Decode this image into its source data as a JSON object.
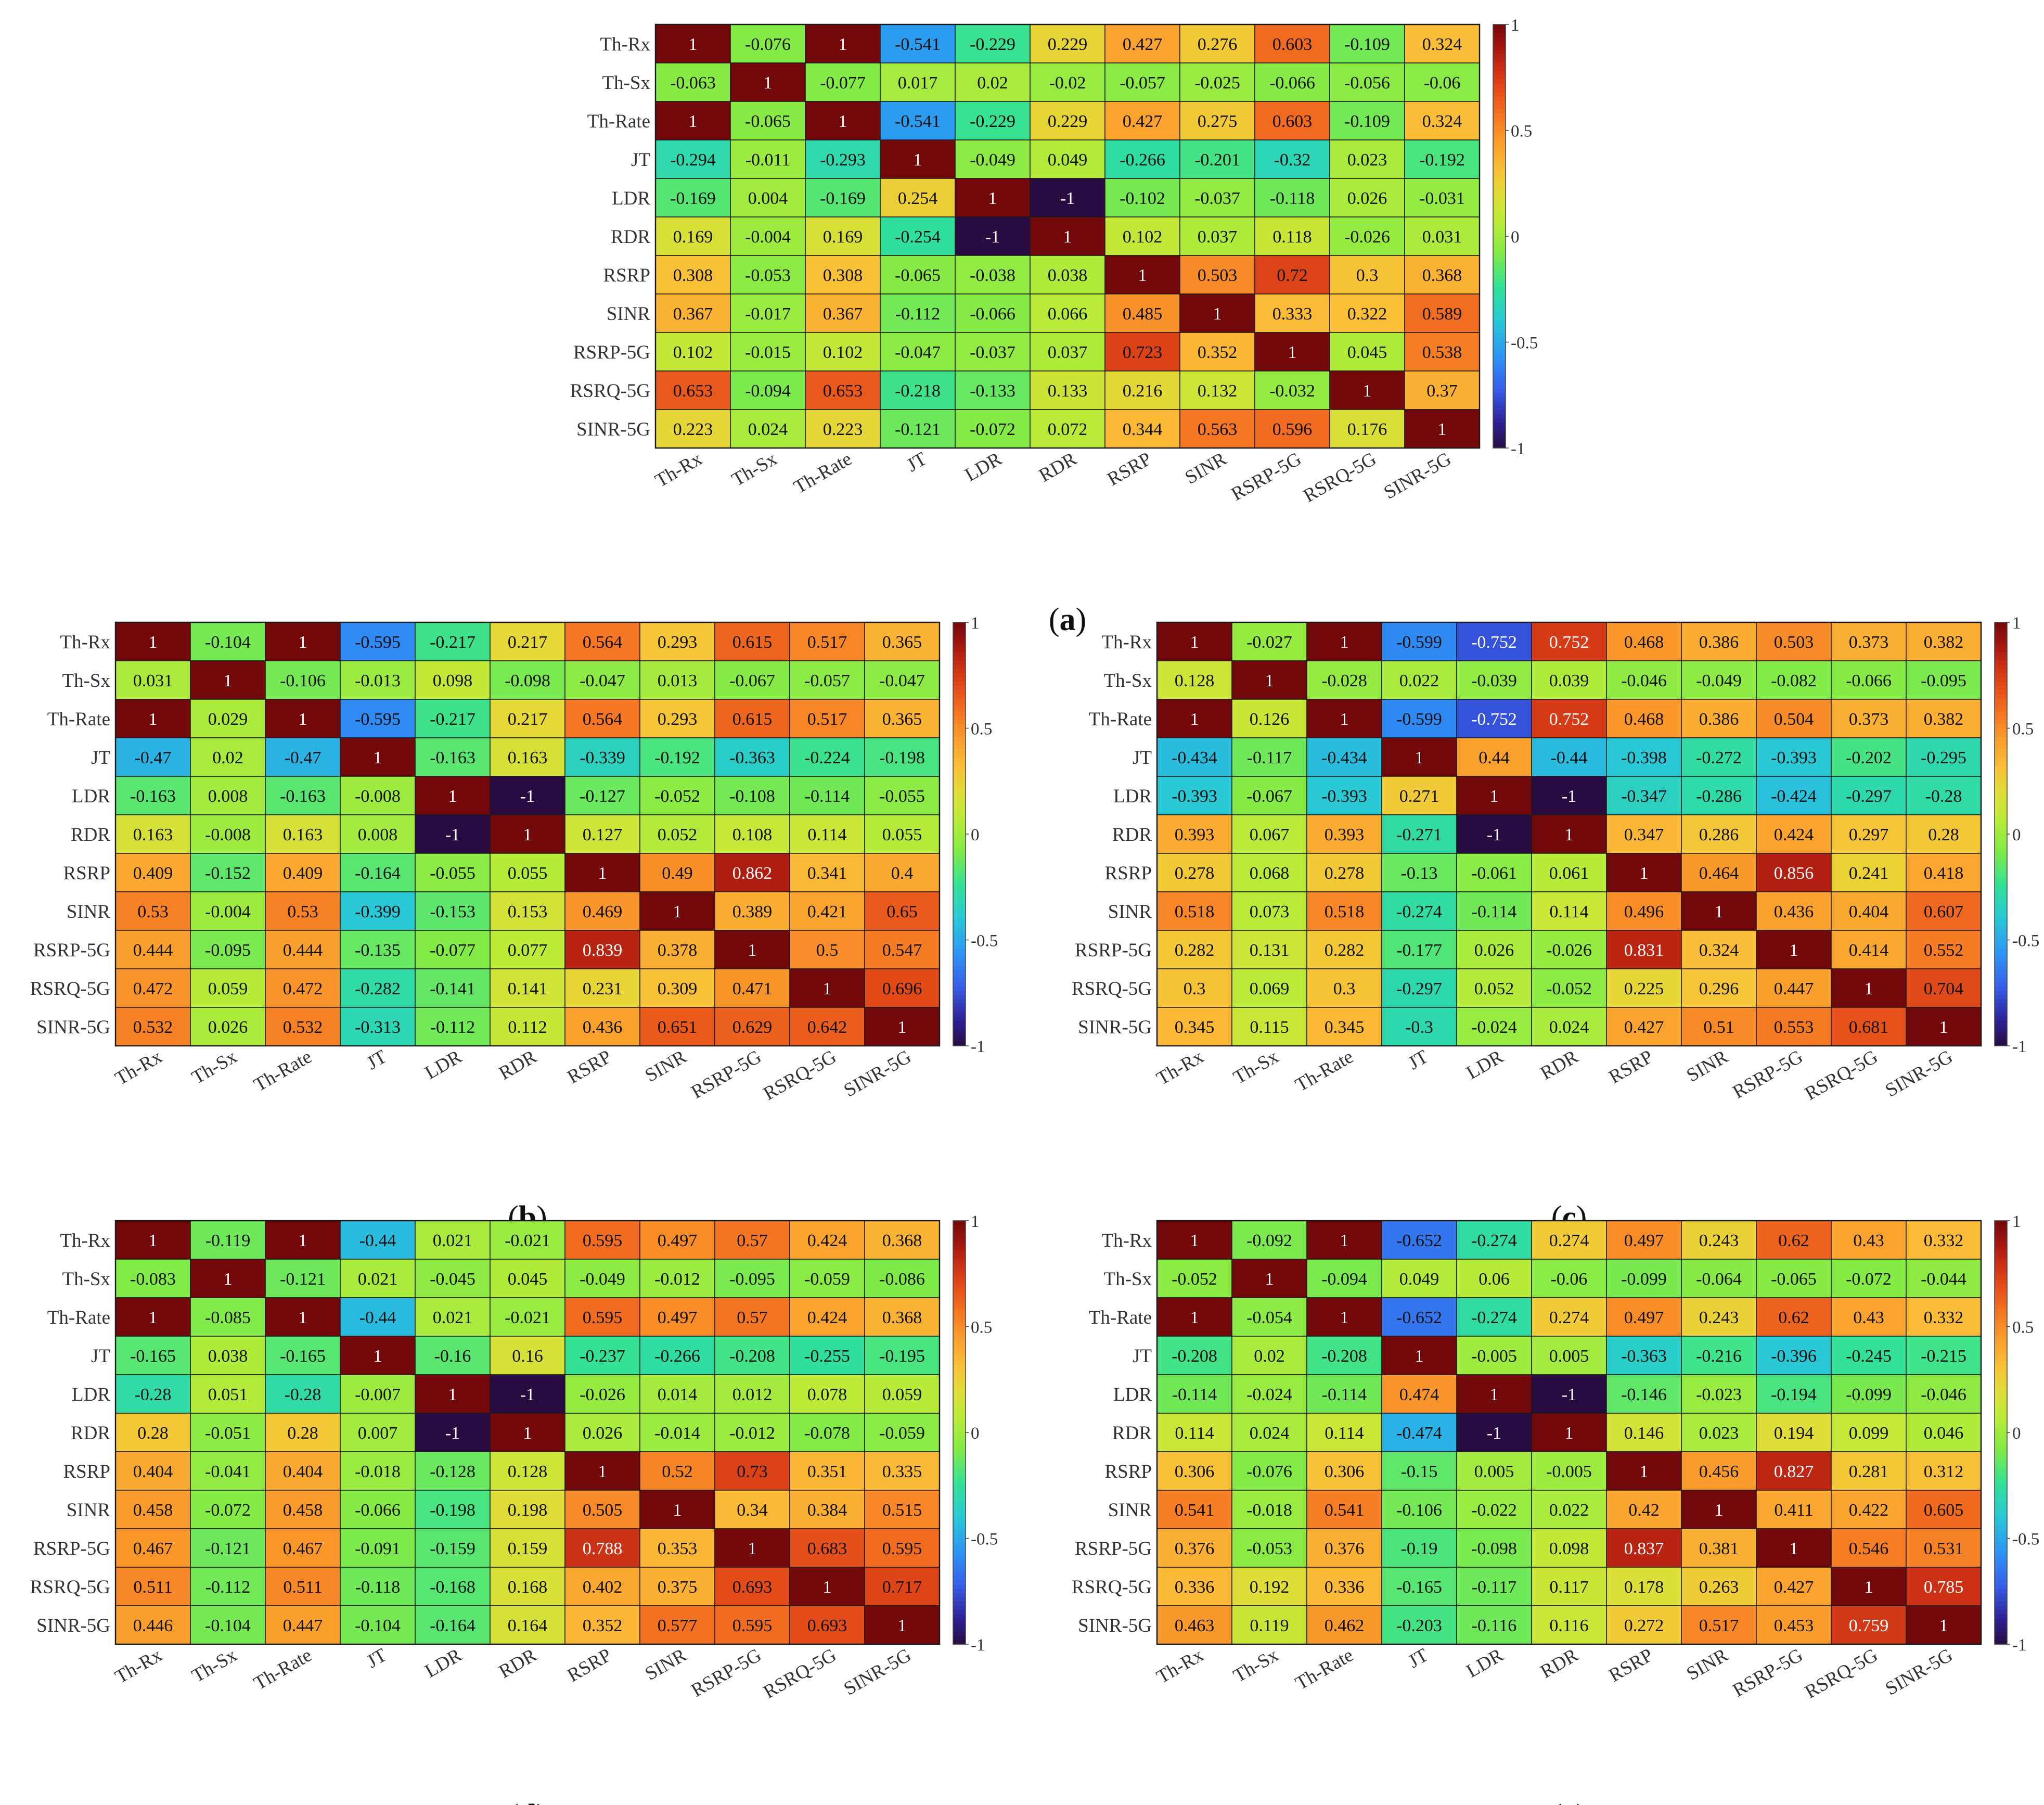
{
  "figure": {
    "variables": [
      "Th-Rx",
      "Th-Sx",
      "Th-Rate",
      "JT",
      "LDR",
      "RDR",
      "RSRP",
      "SINR",
      "RSRP-5G",
      "RSRQ-5G",
      "SINR-5G"
    ],
    "colorbar": {
      "ticks": [
        "1",
        "0.5",
        "0",
        "-0.5",
        "-1"
      ],
      "colormap": "jet-like"
    }
  },
  "chart_data": [
    {
      "type": "heatmap",
      "panel_label": "(a)",
      "rows": [
        "Th-Rx",
        "Th-Sx",
        "Th-Rate",
        "JT",
        "LDR",
        "RDR",
        "RSRP",
        "SINR",
        "RSRP-5G",
        "RSRQ-5G",
        "SINR-5G"
      ],
      "cols": [
        "Th-Rx",
        "Th-Sx",
        "Th-Rate",
        "JT",
        "LDR",
        "RDR",
        "RSRP",
        "SINR",
        "RSRP-5G",
        "RSRQ-5G",
        "SINR-5G"
      ],
      "zlim": [
        -1,
        1
      ],
      "values": [
        [
          "1",
          "-0.076",
          "1",
          "-0.541",
          "-0.229",
          "0.229",
          "0.427",
          "0.276",
          "0.603",
          "-0.109",
          "0.324"
        ],
        [
          "-0.063",
          "1",
          "-0.077",
          "0.017",
          "0.02",
          "-0.02",
          "-0.057",
          "-0.025",
          "-0.066",
          "-0.056",
          "-0.06"
        ],
        [
          "1",
          "-0.065",
          "1",
          "-0.541",
          "-0.229",
          "0.229",
          "0.427",
          "0.275",
          "0.603",
          "-0.109",
          "0.324"
        ],
        [
          "-0.294",
          "-0.011",
          "-0.293",
          "1",
          "-0.049",
          "0.049",
          "-0.266",
          "-0.201",
          "-0.32",
          "0.023",
          "-0.192"
        ],
        [
          "-0.169",
          "0.004",
          "-0.169",
          "0.254",
          "1",
          "-1",
          "-0.102",
          "-0.037",
          "-0.118",
          "0.026",
          "-0.031"
        ],
        [
          "0.169",
          "-0.004",
          "0.169",
          "-0.254",
          "-1",
          "1",
          "0.102",
          "0.037",
          "0.118",
          "-0.026",
          "0.031"
        ],
        [
          "0.308",
          "-0.053",
          "0.308",
          "-0.065",
          "-0.038",
          "0.038",
          "1",
          "0.503",
          "0.72",
          "0.3",
          "0.368"
        ],
        [
          "0.367",
          "-0.017",
          "0.367",
          "-0.112",
          "-0.066",
          "0.066",
          "0.485",
          "1",
          "0.333",
          "0.322",
          "0.589"
        ],
        [
          "0.102",
          "-0.015",
          "0.102",
          "-0.047",
          "-0.037",
          "0.037",
          "0.723",
          "0.352",
          "1",
          "0.045",
          "0.538"
        ],
        [
          "0.653",
          "-0.094",
          "0.653",
          "-0.218",
          "-0.133",
          "0.133",
          "0.216",
          "0.132",
          "-0.032",
          "1",
          "0.37"
        ],
        [
          "0.223",
          "0.024",
          "0.223",
          "-0.121",
          "-0.072",
          "0.072",
          "0.344",
          "0.563",
          "0.596",
          "0.176",
          "1"
        ]
      ]
    },
    {
      "type": "heatmap",
      "panel_label": "(b)",
      "rows": [
        "Th-Rx",
        "Th-Sx",
        "Th-Rate",
        "JT",
        "LDR",
        "RDR",
        "RSRP",
        "SINR",
        "RSRP-5G",
        "RSRQ-5G",
        "SINR-5G"
      ],
      "cols": [
        "Th-Rx",
        "Th-Sx",
        "Th-Rate",
        "JT",
        "LDR",
        "RDR",
        "RSRP",
        "SINR",
        "RSRP-5G",
        "RSRQ-5G",
        "SINR-5G"
      ],
      "zlim": [
        -1,
        1
      ],
      "values": [
        [
          "1",
          "-0.104",
          "1",
          "-0.595",
          "-0.217",
          "0.217",
          "0.564",
          "0.293",
          "0.615",
          "0.517",
          "0.365"
        ],
        [
          "0.031",
          "1",
          "-0.106",
          "-0.013",
          "0.098",
          "-0.098",
          "-0.047",
          "0.013",
          "-0.067",
          "-0.057",
          "-0.047"
        ],
        [
          "1",
          "0.029",
          "1",
          "-0.595",
          "-0.217",
          "0.217",
          "0.564",
          "0.293",
          "0.615",
          "0.517",
          "0.365"
        ],
        [
          "-0.47",
          "0.02",
          "-0.47",
          "1",
          "-0.163",
          "0.163",
          "-0.339",
          "-0.192",
          "-0.363",
          "-0.224",
          "-0.198"
        ],
        [
          "-0.163",
          "0.008",
          "-0.163",
          "-0.008",
          "1",
          "-1",
          "-0.127",
          "-0.052",
          "-0.108",
          "-0.114",
          "-0.055"
        ],
        [
          "0.163",
          "-0.008",
          "0.163",
          "0.008",
          "-1",
          "1",
          "0.127",
          "0.052",
          "0.108",
          "0.114",
          "0.055"
        ],
        [
          "0.409",
          "-0.152",
          "0.409",
          "-0.164",
          "-0.055",
          "0.055",
          "1",
          "0.49",
          "0.862",
          "0.341",
          "0.4"
        ],
        [
          "0.53",
          "-0.004",
          "0.53",
          "-0.399",
          "-0.153",
          "0.153",
          "0.469",
          "1",
          "0.389",
          "0.421",
          "0.65"
        ],
        [
          "0.444",
          "-0.095",
          "0.444",
          "-0.135",
          "-0.077",
          "0.077",
          "0.839",
          "0.378",
          "1",
          "0.5",
          "0.547"
        ],
        [
          "0.472",
          "0.059",
          "0.472",
          "-0.282",
          "-0.141",
          "0.141",
          "0.231",
          "0.309",
          "0.471",
          "1",
          "0.696"
        ],
        [
          "0.532",
          "0.026",
          "0.532",
          "-0.313",
          "-0.112",
          "0.112",
          "0.436",
          "0.651",
          "0.629",
          "0.642",
          "1"
        ]
      ]
    },
    {
      "type": "heatmap",
      "panel_label": "(c)",
      "rows": [
        "Th-Rx",
        "Th-Sx",
        "Th-Rate",
        "JT",
        "LDR",
        "RDR",
        "RSRP",
        "SINR",
        "RSRP-5G",
        "RSRQ-5G",
        "SINR-5G"
      ],
      "cols": [
        "Th-Rx",
        "Th-Sx",
        "Th-Rate",
        "JT",
        "LDR",
        "RDR",
        "RSRP",
        "SINR",
        "RSRP-5G",
        "RSRQ-5G",
        "SINR-5G"
      ],
      "zlim": [
        -1,
        1
      ],
      "values": [
        [
          "1",
          "-0.027",
          "1",
          "-0.599",
          "-0.752",
          "0.752",
          "0.468",
          "0.386",
          "0.503",
          "0.373",
          "0.382"
        ],
        [
          "0.128",
          "1",
          "-0.028",
          "0.022",
          "-0.039",
          "0.039",
          "-0.046",
          "-0.049",
          "-0.082",
          "-0.066",
          "-0.095"
        ],
        [
          "1",
          "0.126",
          "1",
          "-0.599",
          "-0.752",
          "0.752",
          "0.468",
          "0.386",
          "0.504",
          "0.373",
          "0.382"
        ],
        [
          "-0.434",
          "-0.117",
          "-0.434",
          "1",
          "0.44",
          "-0.44",
          "-0.398",
          "-0.272",
          "-0.393",
          "-0.202",
          "-0.295"
        ],
        [
          "-0.393",
          "-0.067",
          "-0.393",
          "0.271",
          "1",
          "-1",
          "-0.347",
          "-0.286",
          "-0.424",
          "-0.297",
          "-0.28"
        ],
        [
          "0.393",
          "0.067",
          "0.393",
          "-0.271",
          "-1",
          "1",
          "0.347",
          "0.286",
          "0.424",
          "0.297",
          "0.28"
        ],
        [
          "0.278",
          "0.068",
          "0.278",
          "-0.13",
          "-0.061",
          "0.061",
          "1",
          "0.464",
          "0.856",
          "0.241",
          "0.418"
        ],
        [
          "0.518",
          "0.073",
          "0.518",
          "-0.274",
          "-0.114",
          "0.114",
          "0.496",
          "1",
          "0.436",
          "0.404",
          "0.607"
        ],
        [
          "0.282",
          "0.131",
          "0.282",
          "-0.177",
          "0.026",
          "-0.026",
          "0.831",
          "0.324",
          "1",
          "0.414",
          "0.552"
        ],
        [
          "0.3",
          "0.069",
          "0.3",
          "-0.297",
          "0.052",
          "-0.052",
          "0.225",
          "0.296",
          "0.447",
          "1",
          "0.704"
        ],
        [
          "0.345",
          "0.115",
          "0.345",
          "-0.3",
          "-0.024",
          "0.024",
          "0.427",
          "0.51",
          "0.553",
          "0.681",
          "1"
        ]
      ]
    },
    {
      "type": "heatmap",
      "panel_label": "(d)",
      "rows": [
        "Th-Rx",
        "Th-Sx",
        "Th-Rate",
        "JT",
        "LDR",
        "RDR",
        "RSRP",
        "SINR",
        "RSRP-5G",
        "RSRQ-5G",
        "SINR-5G"
      ],
      "cols": [
        "Th-Rx",
        "Th-Sx",
        "Th-Rate",
        "JT",
        "LDR",
        "RDR",
        "RSRP",
        "SINR",
        "RSRP-5G",
        "RSRQ-5G",
        "SINR-5G"
      ],
      "zlim": [
        -1,
        1
      ],
      "values": [
        [
          "1",
          "-0.119",
          "1",
          "-0.44",
          "0.021",
          "-0.021",
          "0.595",
          "0.497",
          "0.57",
          "0.424",
          "0.368"
        ],
        [
          "-0.083",
          "1",
          "-0.121",
          "0.021",
          "-0.045",
          "0.045",
          "-0.049",
          "-0.012",
          "-0.095",
          "-0.059",
          "-0.086"
        ],
        [
          "1",
          "-0.085",
          "1",
          "-0.44",
          "0.021",
          "-0.021",
          "0.595",
          "0.497",
          "0.57",
          "0.424",
          "0.368"
        ],
        [
          "-0.165",
          "0.038",
          "-0.165",
          "1",
          "-0.16",
          "0.16",
          "-0.237",
          "-0.266",
          "-0.208",
          "-0.255",
          "-0.195"
        ],
        [
          "-0.28",
          "0.051",
          "-0.28",
          "-0.007",
          "1",
          "-1",
          "-0.026",
          "0.014",
          "0.012",
          "0.078",
          "0.059"
        ],
        [
          "0.28",
          "-0.051",
          "0.28",
          "0.007",
          "-1",
          "1",
          "0.026",
          "-0.014",
          "-0.012",
          "-0.078",
          "-0.059"
        ],
        [
          "0.404",
          "-0.041",
          "0.404",
          "-0.018",
          "-0.128",
          "0.128",
          "1",
          "0.52",
          "0.73",
          "0.351",
          "0.335"
        ],
        [
          "0.458",
          "-0.072",
          "0.458",
          "-0.066",
          "-0.198",
          "0.198",
          "0.505",
          "1",
          "0.34",
          "0.384",
          "0.515"
        ],
        [
          "0.467",
          "-0.121",
          "0.467",
          "-0.091",
          "-0.159",
          "0.159",
          "0.788",
          "0.353",
          "1",
          "0.683",
          "0.595"
        ],
        [
          "0.511",
          "-0.112",
          "0.511",
          "-0.118",
          "-0.168",
          "0.168",
          "0.402",
          "0.375",
          "0.693",
          "1",
          "0.717"
        ],
        [
          "0.446",
          "-0.104",
          "0.447",
          "-0.104",
          "-0.164",
          "0.164",
          "0.352",
          "0.577",
          "0.595",
          "0.693",
          "1"
        ]
      ]
    },
    {
      "type": "heatmap",
      "panel_label": "(e)",
      "rows": [
        "Th-Rx",
        "Th-Sx",
        "Th-Rate",
        "JT",
        "LDR",
        "RDR",
        "RSRP",
        "SINR",
        "RSRP-5G",
        "RSRQ-5G",
        "SINR-5G"
      ],
      "cols": [
        "Th-Rx",
        "Th-Sx",
        "Th-Rate",
        "JT",
        "LDR",
        "RDR",
        "RSRP",
        "SINR",
        "RSRP-5G",
        "RSRQ-5G",
        "SINR-5G"
      ],
      "zlim": [
        -1,
        1
      ],
      "values": [
        [
          "1",
          "-0.092",
          "1",
          "-0.652",
          "-0.274",
          "0.274",
          "0.497",
          "0.243",
          "0.62",
          "0.43",
          "0.332"
        ],
        [
          "-0.052",
          "1",
          "-0.094",
          "0.049",
          "0.06",
          "-0.06",
          "-0.099",
          "-0.064",
          "-0.065",
          "-0.072",
          "-0.044"
        ],
        [
          "1",
          "-0.054",
          "1",
          "-0.652",
          "-0.274",
          "0.274",
          "0.497",
          "0.243",
          "0.62",
          "0.43",
          "0.332"
        ],
        [
          "-0.208",
          "0.02",
          "-0.208",
          "1",
          "-0.005",
          "0.005",
          "-0.363",
          "-0.216",
          "-0.396",
          "-0.245",
          "-0.215"
        ],
        [
          "-0.114",
          "-0.024",
          "-0.114",
          "0.474",
          "1",
          "-1",
          "-0.146",
          "-0.023",
          "-0.194",
          "-0.099",
          "-0.046"
        ],
        [
          "0.114",
          "0.024",
          "0.114",
          "-0.474",
          "-1",
          "1",
          "0.146",
          "0.023",
          "0.194",
          "0.099",
          "0.046"
        ],
        [
          "0.306",
          "-0.076",
          "0.306",
          "-0.15",
          "0.005",
          "-0.005",
          "1",
          "0.456",
          "0.827",
          "0.281",
          "0.312"
        ],
        [
          "0.541",
          "-0.018",
          "0.541",
          "-0.106",
          "-0.022",
          "0.022",
          "0.42",
          "1",
          "0.411",
          "0.422",
          "0.605"
        ],
        [
          "0.376",
          "-0.053",
          "0.376",
          "-0.19",
          "-0.098",
          "0.098",
          "0.837",
          "0.381",
          "1",
          "0.546",
          "0.531"
        ],
        [
          "0.336",
          "0.192",
          "0.336",
          "-0.165",
          "-0.117",
          "0.117",
          "0.178",
          "0.263",
          "0.427",
          "1",
          "0.785"
        ],
        [
          "0.463",
          "0.119",
          "0.462",
          "-0.203",
          "-0.116",
          "0.116",
          "0.272",
          "0.517",
          "0.453",
          "0.759",
          "1"
        ]
      ]
    }
  ]
}
